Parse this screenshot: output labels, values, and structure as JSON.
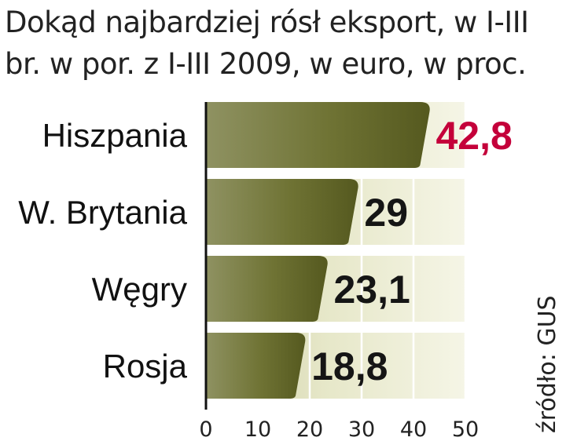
{
  "chart_data": {
    "type": "bar",
    "orientation": "horizontal",
    "title": "Dokąd najbardziej rósł eksport, w I-III br. w por. z I-III 2009, w euro, w proc.",
    "categories": [
      "Hiszpania",
      "W. Brytania",
      "Węgry",
      "Rosja"
    ],
    "values": [
      42.8,
      29,
      23.1,
      18.8
    ],
    "value_labels": [
      "42,8",
      "29",
      "23,1",
      "18,8"
    ],
    "xlim": [
      0,
      50
    ],
    "x_ticks": [
      "0",
      "10",
      "20",
      "30",
      "40",
      "50"
    ],
    "grid": true,
    "colors": {
      "bar_dark": "#5b5f24",
      "bar_light": "#a7aa78",
      "background_band": "#ecedd2",
      "highlight_label": "#c4003a",
      "label": "#151515"
    },
    "highlight_index": 0,
    "source": "źródło: GUS"
  }
}
